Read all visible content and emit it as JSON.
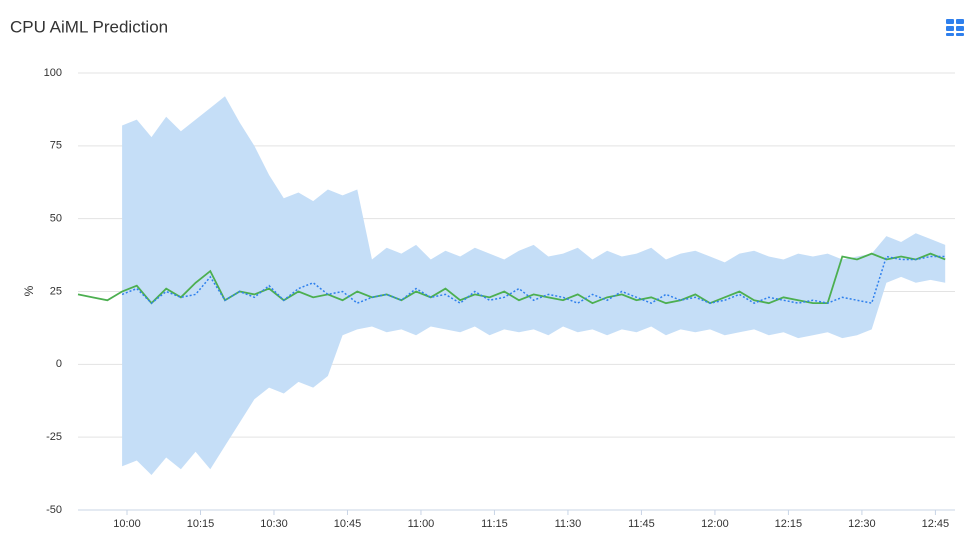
{
  "title": "CPU AiML Prediction",
  "chart_data": {
    "type": "line",
    "y_label": "%",
    "x": [
      590,
      593,
      596,
      599,
      602,
      605,
      608,
      611,
      614,
      617,
      620,
      623,
      626,
      629,
      632,
      635,
      638,
      641,
      644,
      647,
      650,
      653,
      656,
      659,
      662,
      665,
      668,
      671,
      674,
      677,
      680,
      683,
      686,
      689,
      692,
      695,
      698,
      701,
      704,
      707,
      710,
      713,
      716,
      719,
      722,
      725,
      728,
      731,
      734,
      737,
      740,
      743,
      746,
      749,
      752,
      755,
      758,
      761,
      764,
      767
    ],
    "xlim": [
      590,
      769
    ],
    "xticks": [
      {
        "value": 600,
        "label": "10:00"
      },
      {
        "value": 615,
        "label": "10:15"
      },
      {
        "value": 630,
        "label": "10:30"
      },
      {
        "value": 645,
        "label": "10:45"
      },
      {
        "value": 660,
        "label": "11:00"
      },
      {
        "value": 675,
        "label": "11:15"
      },
      {
        "value": 690,
        "label": "11:30"
      },
      {
        "value": 705,
        "label": "11:45"
      },
      {
        "value": 720,
        "label": "12:00"
      },
      {
        "value": 735,
        "label": "12:15"
      },
      {
        "value": 750,
        "label": "12:30"
      },
      {
        "value": 765,
        "label": "12:45"
      }
    ],
    "ylim": [
      -50,
      100
    ],
    "yticks": [
      -50,
      -25,
      0,
      25,
      50,
      75,
      100
    ],
    "grid": true,
    "band": {
      "color": "#c5def7",
      "upper": [
        null,
        null,
        null,
        82,
        84,
        78,
        85,
        80,
        84,
        88,
        92,
        83,
        75,
        65,
        57,
        59,
        56,
        60,
        58,
        60,
        36,
        40,
        38,
        41,
        36,
        39,
        37,
        40,
        38,
        36,
        39,
        41,
        37,
        38,
        40,
        36,
        39,
        37,
        38,
        40,
        36,
        38,
        39,
        37,
        35,
        38,
        39,
        37,
        36,
        38,
        37,
        38,
        36,
        37,
        38,
        44,
        42,
        45,
        43,
        41
      ],
      "lower": [
        null,
        null,
        null,
        -35,
        -33,
        -38,
        -32,
        -36,
        -30,
        -36,
        -28,
        -20,
        -12,
        -8,
        -10,
        -6,
        -8,
        -4,
        10,
        12,
        13,
        11,
        12,
        10,
        13,
        12,
        11,
        13,
        10,
        12,
        11,
        12,
        10,
        13,
        11,
        12,
        10,
        12,
        11,
        13,
        10,
        12,
        11,
        12,
        10,
        11,
        12,
        10,
        11,
        9,
        10,
        11,
        9,
        10,
        12,
        28,
        30,
        28,
        29,
        28
      ]
    },
    "series": [
      {
        "color": "#4caf50",
        "dash": false,
        "values": [
          24,
          23,
          22,
          25,
          27,
          21,
          26,
          23,
          28,
          32,
          22,
          25,
          24,
          26,
          22,
          25,
          23,
          24,
          22,
          25,
          23,
          24,
          22,
          25,
          23,
          26,
          22,
          24,
          23,
          25,
          22,
          24,
          23,
          22,
          24,
          21,
          23,
          24,
          22,
          23,
          21,
          22,
          24,
          21,
          23,
          25,
          22,
          21,
          23,
          22,
          21,
          21,
          37,
          36,
          38,
          36,
          37,
          36,
          38,
          36
        ]
      },
      {
        "color": "#2f80ed",
        "dash": true,
        "values": [
          null,
          null,
          null,
          24,
          26,
          21,
          25,
          23,
          24,
          30,
          22,
          25,
          23,
          27,
          22,
          26,
          28,
          24,
          25,
          21,
          23,
          24,
          22,
          26,
          23,
          24,
          21,
          25,
          22,
          23,
          26,
          22,
          24,
          23,
          21,
          24,
          22,
          25,
          23,
          21,
          24,
          22,
          23,
          21,
          22,
          24,
          21,
          23,
          22,
          21,
          22,
          21,
          23,
          22,
          21,
          37,
          36,
          36,
          37,
          37
        ]
      }
    ]
  }
}
